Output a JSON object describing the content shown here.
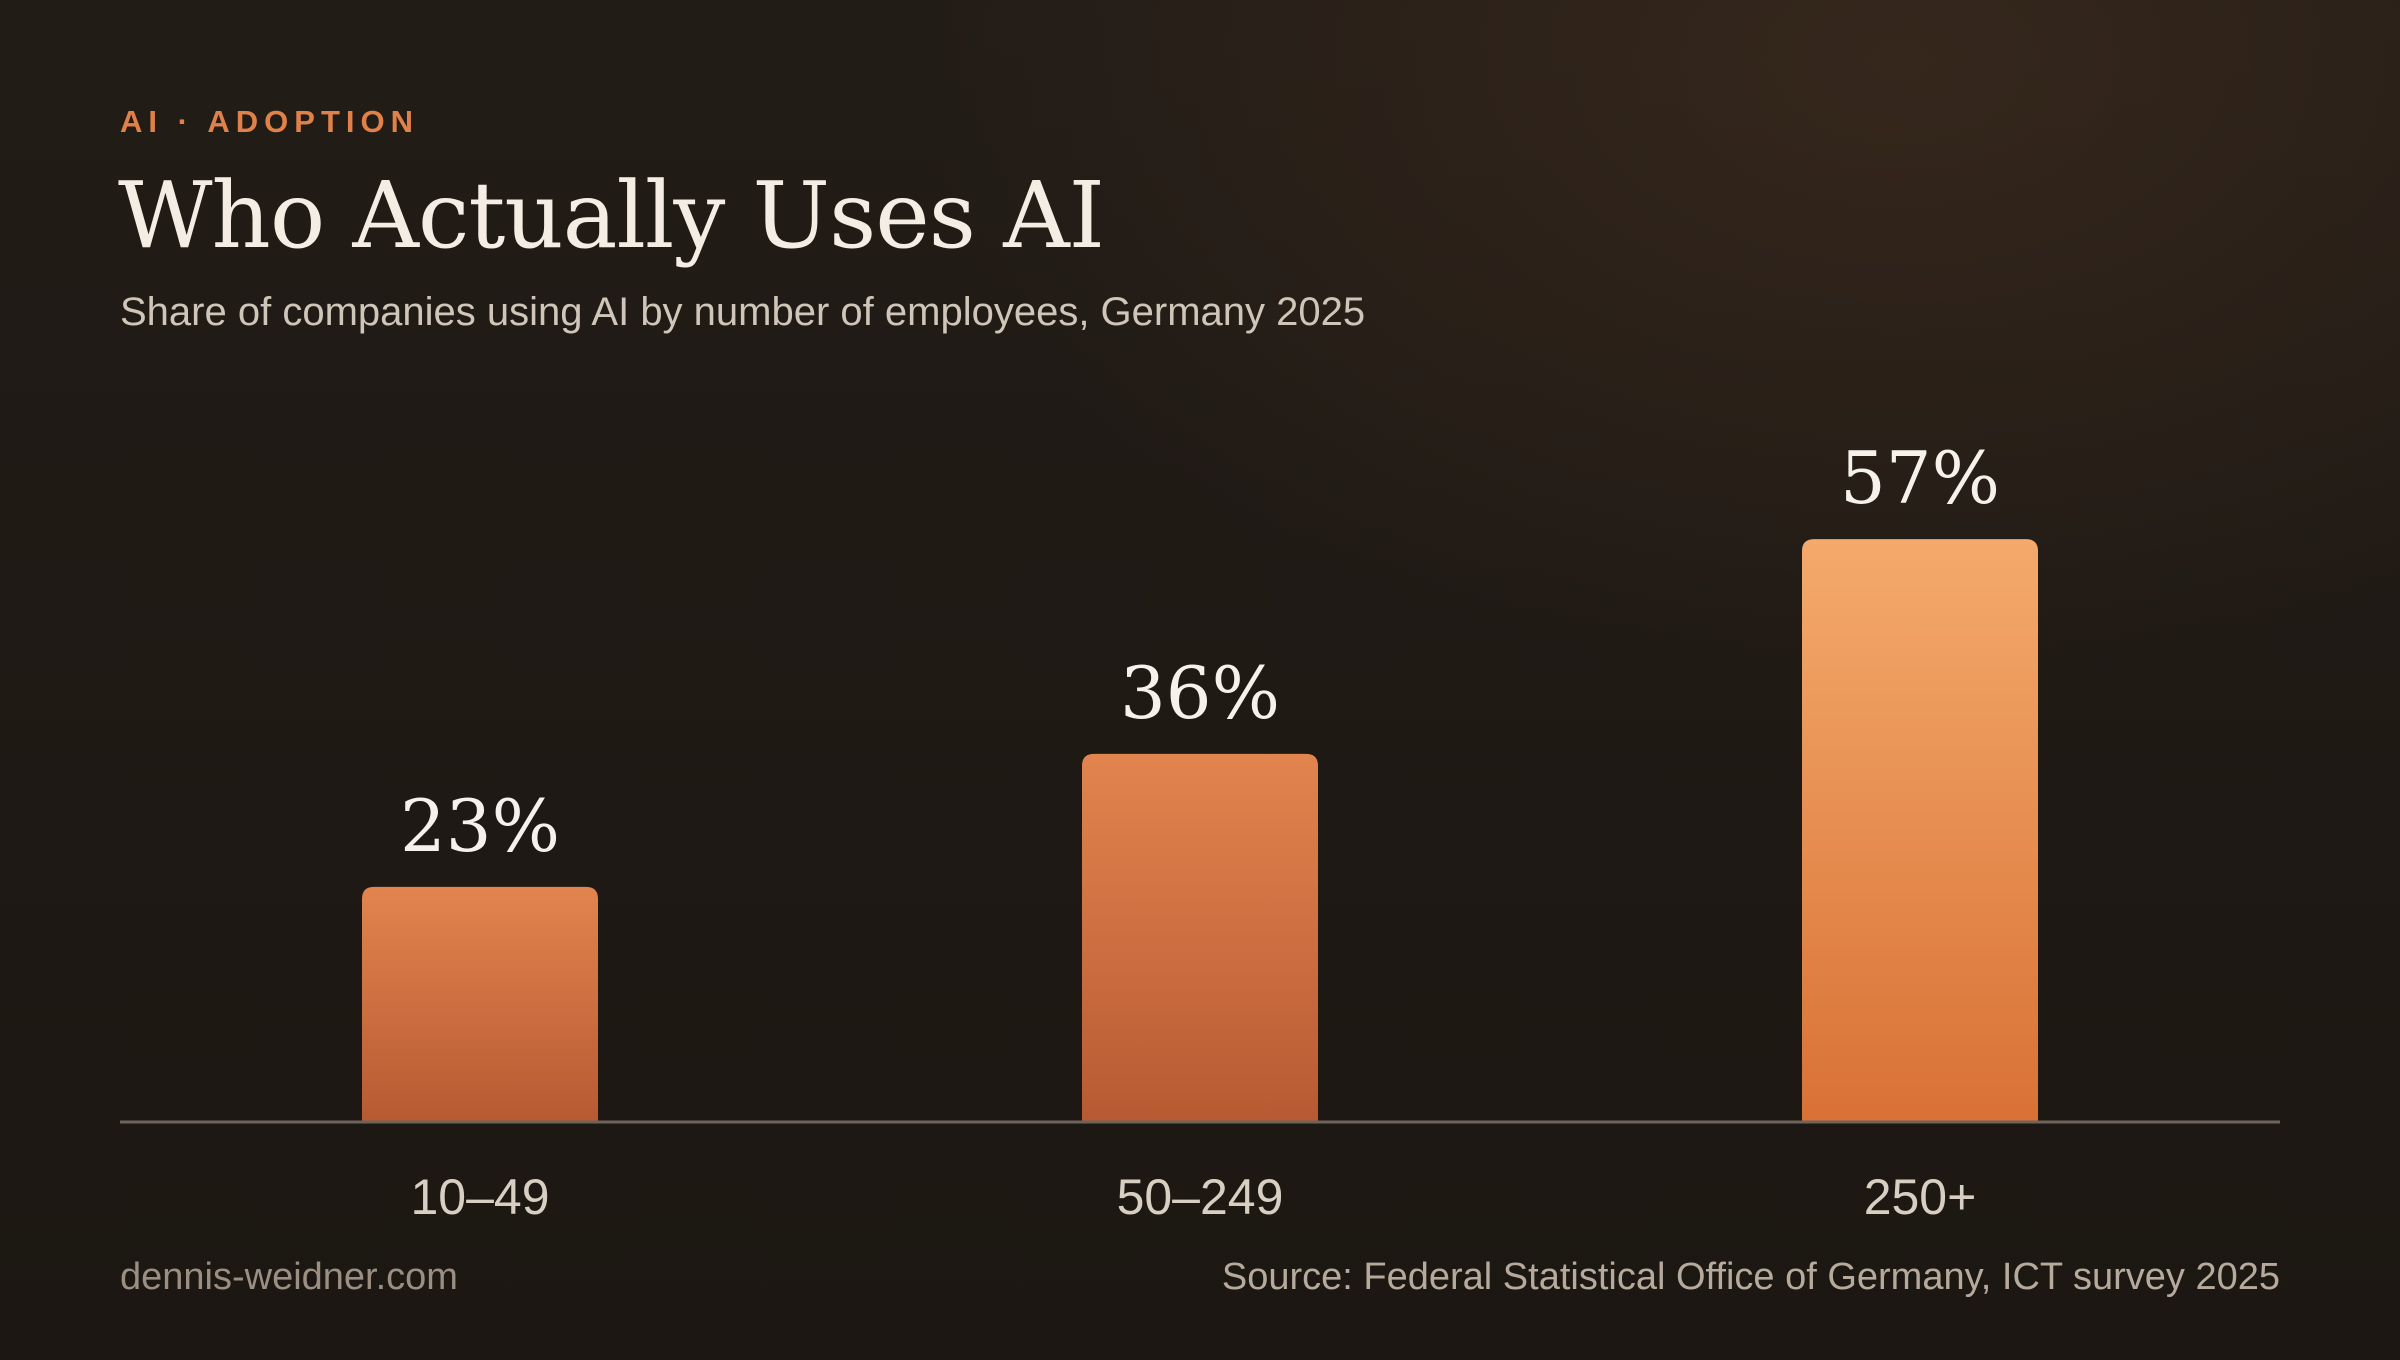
{
  "header": {
    "eyebrow": "AI · ADOPTION",
    "title": "Who Actually Uses AI",
    "subtitle": "Share of companies using AI by number of employees, Germany 2025"
  },
  "footer": {
    "site": "dennis-weidner.com",
    "source": "Source: Federal Statistical Office of Germany, ICT survey 2025"
  },
  "colors": {
    "accent": "#e0814a",
    "bar_top_light": "#f4a96b",
    "bar_bottom": "#b85a33",
    "axis_line": "#6e645a"
  },
  "chart_data": {
    "type": "bar",
    "title": "Who Actually Uses AI",
    "subtitle": "Share of companies using AI by number of employees, Germany 2025",
    "categories": [
      "10–49",
      "50–249",
      "250+"
    ],
    "values": [
      23,
      36,
      57
    ],
    "value_labels": [
      "23%",
      "36%",
      "57%"
    ],
    "unit": "%",
    "ylim": [
      0,
      100
    ],
    "grid": false,
    "legend": "none",
    "highlight_index": 2
  }
}
